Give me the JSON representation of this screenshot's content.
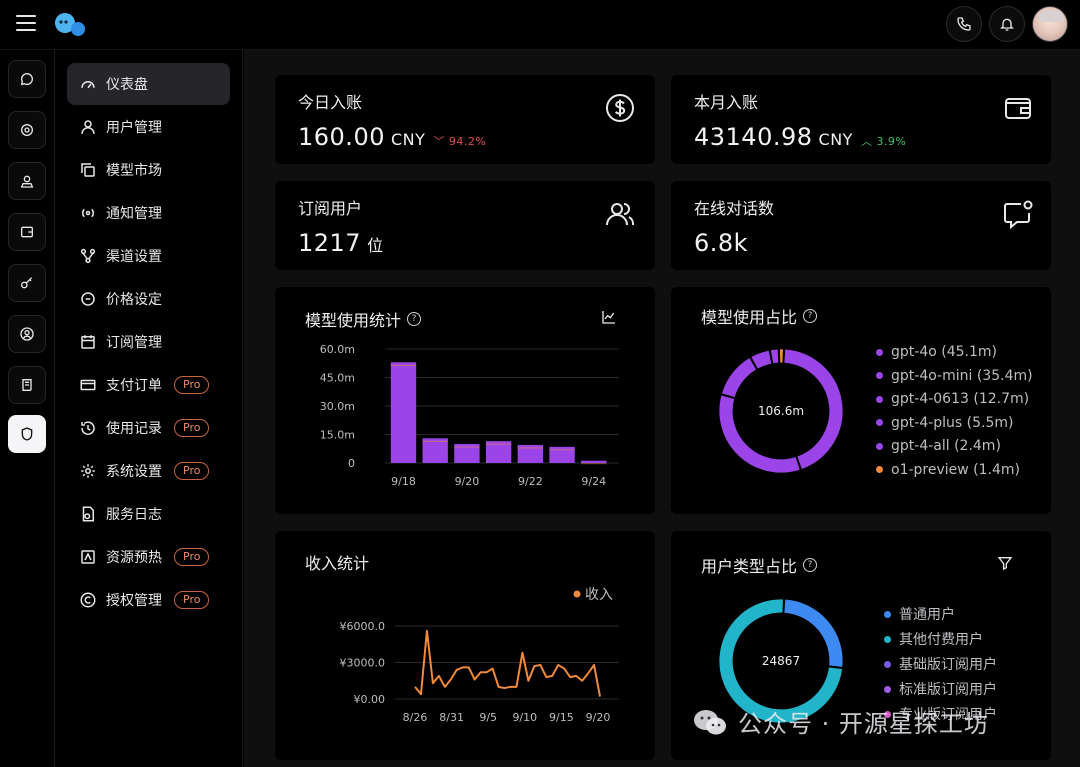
{
  "topbar": {
    "icons": [
      "menu-icon",
      "chat-bubbles-logo",
      "phone-icon",
      "bell-icon",
      "user-avatar"
    ]
  },
  "rail": {
    "icons": [
      "chat-icon",
      "settings-circle-icon",
      "user-pin-icon",
      "wallet-icon",
      "key-icon",
      "user-circle-icon",
      "scroll-icon",
      "shield-icon"
    ],
    "active_index": 7
  },
  "nav": {
    "items": [
      {
        "label": "仪表盘",
        "icon": "gauge-icon",
        "pro": false
      },
      {
        "label": "用户管理",
        "icon": "user-icon",
        "pro": false
      },
      {
        "label": "模型市场",
        "icon": "copy-icon",
        "pro": false
      },
      {
        "label": "通知管理",
        "icon": "broadcast-icon",
        "pro": false
      },
      {
        "label": "渠道设置",
        "icon": "branch-icon",
        "pro": false
      },
      {
        "label": "价格设定",
        "icon": "coin-icon",
        "pro": false
      },
      {
        "label": "订阅管理",
        "icon": "calendar-icon",
        "pro": false
      },
      {
        "label": "支付订单",
        "icon": "card-icon",
        "pro": true
      },
      {
        "label": "使用记录",
        "icon": "history-icon",
        "pro": true
      },
      {
        "label": "系统设置",
        "icon": "gear-icon",
        "pro": true
      },
      {
        "label": "服务日志",
        "icon": "log-icon",
        "pro": false
      },
      {
        "label": "资源预热",
        "icon": "flame-box-icon",
        "pro": true
      },
      {
        "label": "授权管理",
        "icon": "copyright-icon",
        "pro": true
      }
    ],
    "pro_label": "Pro"
  },
  "stats": {
    "today": {
      "title": "今日入账",
      "value": "160.00",
      "unit": "CNY",
      "change": "94.2%",
      "direction": "down"
    },
    "month": {
      "title": "本月入账",
      "value": "43140.98",
      "unit": "CNY",
      "change": "3.9%",
      "direction": "up"
    },
    "subscribers": {
      "title": "订阅用户",
      "value": "1217",
      "unit": "位"
    },
    "sessions": {
      "title": "在线对话数",
      "value": "6.8k"
    }
  },
  "model_usage": {
    "title": "模型使用统计",
    "help": "?"
  },
  "model_share": {
    "title": "模型使用占比",
    "help": "?",
    "center_label": "106.6m"
  },
  "income": {
    "title": "收入统计"
  },
  "user_types": {
    "title": "用户类型占比",
    "help": "?",
    "center_label": "24867",
    "legend": [
      {
        "label": "普通用户",
        "color": "#3d8bf2"
      },
      {
        "label": "其他付费用户",
        "color": "#22b5c9"
      },
      {
        "label": "基础版订阅用户",
        "color": "#7c5ce6"
      },
      {
        "label": "标准版订阅用户",
        "color": "#a35ce6"
      },
      {
        "label": "专业版订阅用户",
        "color": "#d65cc8"
      }
    ],
    "values": [
      0.26,
      0.74,
      0.0,
      0.0,
      0.0
    ]
  },
  "watermark": {
    "text": "公众号 · 开源星探工坊"
  },
  "chart_data": [
    {
      "type": "bar",
      "title": "模型使用统计",
      "categories": [
        "9/18",
        "9/19",
        "9/20",
        "9/21",
        "9/22",
        "9/23",
        "9/24"
      ],
      "x_tick_labels": [
        "9/18",
        "9/20",
        "9/22",
        "9/24"
      ],
      "values": [
        53.0,
        13.0,
        10.0,
        11.5,
        9.5,
        8.5,
        1.2
      ],
      "y_tick_labels": [
        "0",
        "15.0m",
        "30.0m",
        "45.0m",
        "60.0m"
      ],
      "ylim": [
        0,
        60
      ],
      "color": "#9b45e8",
      "grid": true
    },
    {
      "type": "pie",
      "title": "模型使用占比",
      "labels": [
        "gpt-4o",
        "gpt-4o-mini",
        "gpt-4-0613",
        "gpt-4-plus",
        "gpt-4-all",
        "o1-preview"
      ],
      "legend_labels": [
        "gpt-4o (45.1m)",
        "gpt-4o-mini (35.4m)",
        "gpt-4-0613 (12.7m)",
        "gpt-4-plus (5.5m)",
        "gpt-4-all (2.4m)",
        "o1-preview (1.4m)"
      ],
      "values": [
        45.1,
        35.4,
        12.7,
        5.5,
        2.4,
        1.4
      ],
      "colors": [
        "#9b45e8",
        "#9b45e8",
        "#9b45e8",
        "#9b45e8",
        "#9b45e8",
        "#f08a3c"
      ],
      "center_label": "106.6m",
      "legend_position": "right"
    },
    {
      "type": "line",
      "title": "收入统计",
      "series": [
        {
          "name": "收入",
          "color": "#f08a3c",
          "values": [
            1000,
            400,
            5600,
            1300,
            1900,
            1000,
            1600,
            2400,
            2600,
            2600,
            1600,
            2200,
            2200,
            2500,
            1000,
            900,
            1000,
            1000,
            3800,
            1500,
            2700,
            2800,
            1800,
            1900,
            2800,
            2500,
            1800,
            1900,
            1500,
            2100,
            2800,
            200
          ]
        }
      ],
      "x_tick_labels": [
        "8/26",
        "8/31",
        "9/5",
        "9/10",
        "9/15",
        "9/20"
      ],
      "y_tick_labels": [
        "¥0.00",
        "¥3000.0",
        "¥6000.0"
      ],
      "ylim": [
        0,
        6000
      ],
      "legend_position": "top-right",
      "grid": true
    }
  ]
}
